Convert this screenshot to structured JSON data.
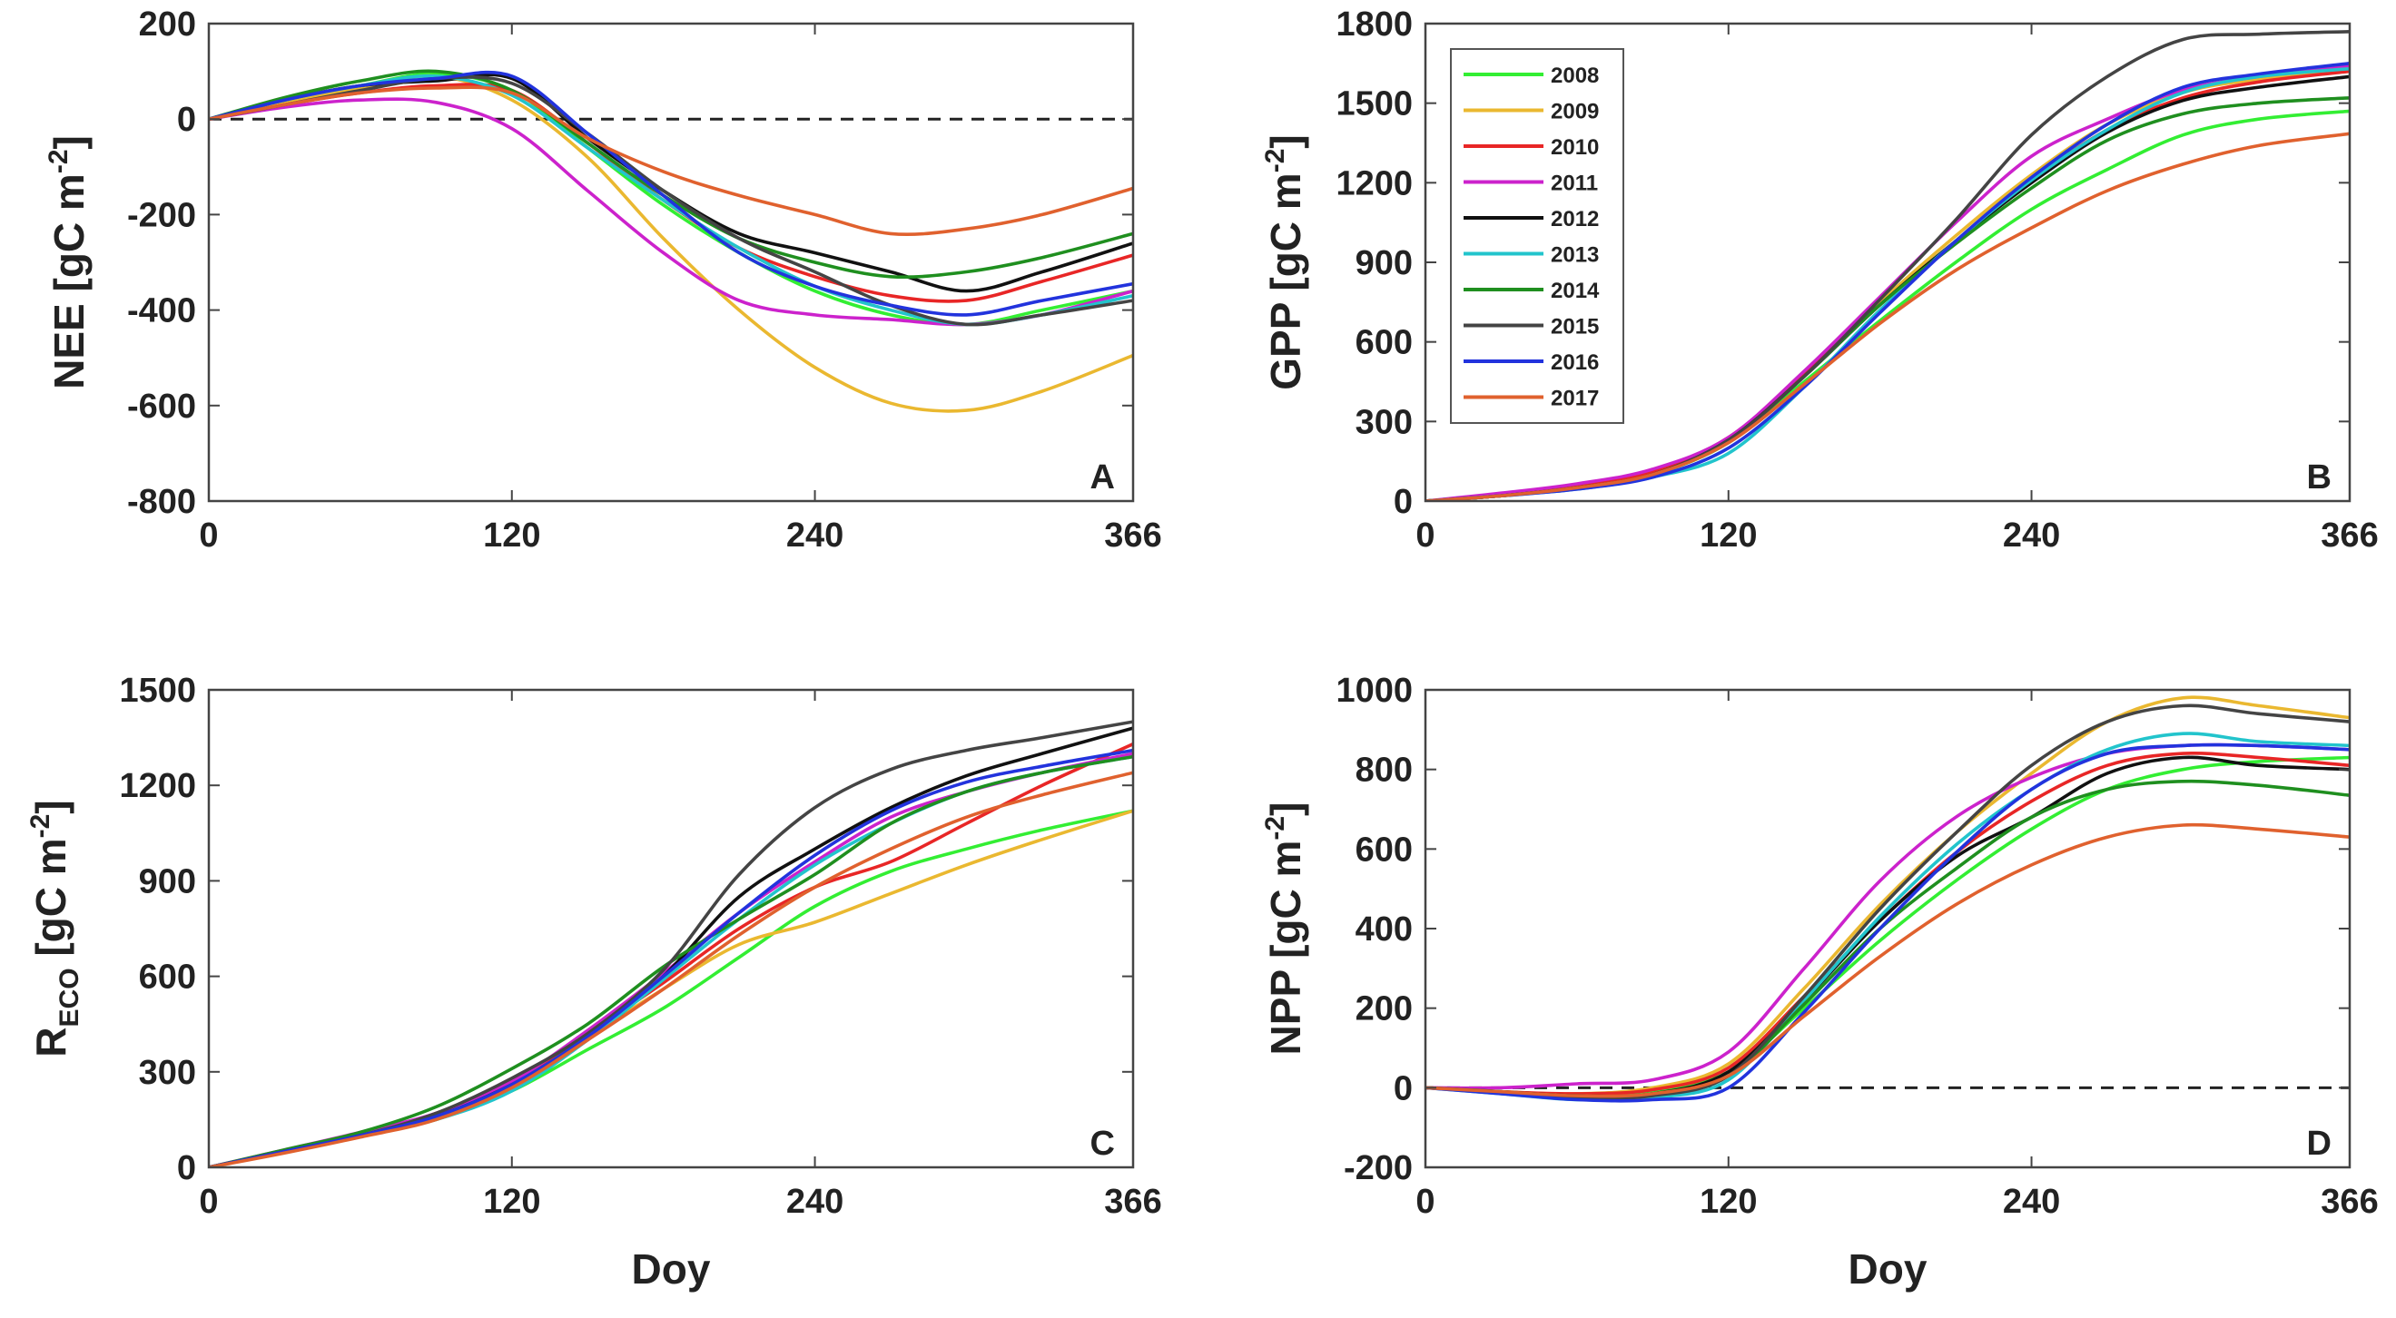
{
  "legend": {
    "entries": [
      {
        "name": "2008",
        "color": "#33ee33"
      },
      {
        "name": "2009",
        "color": "#eab830"
      },
      {
        "name": "2010",
        "color": "#e82626"
      },
      {
        "name": "2011",
        "color": "#cc22cc"
      },
      {
        "name": "2012",
        "color": "#111111"
      },
      {
        "name": "2013",
        "color": "#22c4cc"
      },
      {
        "name": "2014",
        "color": "#1f8f1f"
      },
      {
        "name": "2015",
        "color": "#444444"
      },
      {
        "name": "2016",
        "color": "#2233dd"
      },
      {
        "name": "2017",
        "color": "#e0612e"
      }
    ]
  },
  "chart_data": [
    {
      "panel": "A",
      "type": "line",
      "ylabel": "NEE [gC m",
      "ylabel_sup": "-2",
      "ylabel_end": "]",
      "xlabel": "",
      "xlim": [
        0,
        366
      ],
      "ylim": [
        -800,
        200
      ],
      "xticks": [
        0,
        120,
        240,
        366
      ],
      "yticks": [
        200,
        0,
        -200,
        -400,
        -600,
        -800
      ],
      "zero_line": true,
      "x": [
        0,
        30,
        60,
        90,
        120,
        150,
        180,
        210,
        240,
        270,
        300,
        330,
        366
      ],
      "series": [
        {
          "name": "2008",
          "values": [
            0,
            40,
            70,
            95,
            60,
            -60,
            -180,
            -280,
            -360,
            -410,
            -430,
            -400,
            -360
          ]
        },
        {
          "name": "2009",
          "values": [
            0,
            35,
            65,
            90,
            40,
            -80,
            -250,
            -400,
            -520,
            -595,
            -610,
            -570,
            -495
          ]
        },
        {
          "name": "2010",
          "values": [
            0,
            30,
            55,
            70,
            60,
            -50,
            -170,
            -270,
            -330,
            -370,
            -380,
            -340,
            -285
          ]
        },
        {
          "name": "2011",
          "values": [
            0,
            25,
            40,
            35,
            -20,
            -150,
            -280,
            -380,
            -410,
            -420,
            -430,
            -410,
            -360
          ]
        },
        {
          "name": "2012",
          "values": [
            0,
            40,
            70,
            80,
            85,
            -40,
            -150,
            -240,
            -280,
            -320,
            -360,
            -320,
            -260
          ]
        },
        {
          "name": "2013",
          "values": [
            0,
            40,
            70,
            90,
            50,
            -60,
            -170,
            -270,
            -350,
            -400,
            -430,
            -410,
            -370
          ]
        },
        {
          "name": "2014",
          "values": [
            0,
            45,
            80,
            100,
            60,
            -50,
            -160,
            -250,
            -300,
            -330,
            -320,
            -290,
            -240
          ]
        },
        {
          "name": "2015",
          "values": [
            0,
            30,
            60,
            85,
            75,
            -30,
            -150,
            -250,
            -320,
            -390,
            -430,
            -410,
            -380
          ]
        },
        {
          "name": "2016",
          "values": [
            0,
            40,
            70,
            85,
            90,
            -30,
            -160,
            -280,
            -350,
            -390,
            -410,
            -380,
            -345
          ]
        },
        {
          "name": "2017",
          "values": [
            0,
            30,
            55,
            65,
            55,
            -40,
            -110,
            -160,
            -200,
            -240,
            -230,
            -200,
            -145
          ]
        }
      ],
      "annotation": "A"
    },
    {
      "panel": "B",
      "type": "line",
      "ylabel": "GPP [gC m",
      "ylabel_sup": "-2",
      "ylabel_end": "]",
      "xlabel": "",
      "xlim": [
        0,
        366
      ],
      "ylim": [
        0,
        1800
      ],
      "xticks": [
        0,
        120,
        240,
        366
      ],
      "yticks": [
        1800,
        1500,
        1200,
        900,
        600,
        300,
        0
      ],
      "zero_line": false,
      "x": [
        0,
        30,
        60,
        90,
        120,
        150,
        180,
        210,
        240,
        270,
        300,
        330,
        366
      ],
      "series": [
        {
          "name": "2008",
          "values": [
            0,
            20,
            50,
            100,
            220,
            450,
            680,
            900,
            1100,
            1250,
            1380,
            1440,
            1470
          ]
        },
        {
          "name": "2009",
          "values": [
            0,
            20,
            50,
            100,
            230,
            480,
            750,
            1000,
            1230,
            1420,
            1540,
            1590,
            1620
          ]
        },
        {
          "name": "2010",
          "values": [
            0,
            25,
            55,
            110,
            240,
            480,
            740,
            980,
            1210,
            1400,
            1520,
            1580,
            1620
          ]
        },
        {
          "name": "2011",
          "values": [
            0,
            30,
            65,
            120,
            240,
            490,
            770,
            1050,
            1300,
            1440,
            1550,
            1600,
            1640
          ]
        },
        {
          "name": "2012",
          "values": [
            0,
            20,
            50,
            100,
            230,
            470,
            740,
            980,
            1200,
            1390,
            1510,
            1560,
            1600
          ]
        },
        {
          "name": "2013",
          "values": [
            0,
            20,
            45,
            90,
            180,
            430,
            720,
            980,
            1210,
            1400,
            1540,
            1600,
            1630
          ]
        },
        {
          "name": "2014",
          "values": [
            0,
            20,
            50,
            100,
            225,
            470,
            740,
            970,
            1180,
            1360,
            1460,
            1500,
            1520
          ]
        },
        {
          "name": "2015",
          "values": [
            0,
            20,
            50,
            100,
            230,
            470,
            760,
            1060,
            1380,
            1600,
            1740,
            1760,
            1770
          ]
        },
        {
          "name": "2016",
          "values": [
            0,
            20,
            45,
            90,
            200,
            430,
            710,
            980,
            1220,
            1420,
            1560,
            1610,
            1650
          ]
        },
        {
          "name": "2017",
          "values": [
            0,
            20,
            50,
            100,
            220,
            440,
            670,
            870,
            1030,
            1170,
            1270,
            1340,
            1385
          ]
        }
      ],
      "annotation": "B"
    },
    {
      "panel": "C",
      "type": "line",
      "ylabel": "R",
      "ylabel_sub": "ECO",
      "ylabel_end": " [gC m",
      "ylabel_sup": "-2",
      "ylabel_close": "]",
      "xlabel": "Doy",
      "xlim": [
        0,
        366
      ],
      "ylim": [
        0,
        1500
      ],
      "xticks": [
        0,
        120,
        240,
        366
      ],
      "yticks": [
        1500,
        1200,
        900,
        600,
        300,
        0
      ],
      "zero_line": false,
      "x": [
        0,
        30,
        60,
        90,
        120,
        150,
        180,
        210,
        240,
        270,
        300,
        330,
        366
      ],
      "series": [
        {
          "name": "2008",
          "values": [
            0,
            50,
            100,
            150,
            240,
            370,
            500,
            660,
            820,
            930,
            1000,
            1060,
            1120
          ]
        },
        {
          "name": "2009",
          "values": [
            0,
            50,
            100,
            160,
            270,
            410,
            560,
            700,
            770,
            860,
            950,
            1030,
            1120
          ]
        },
        {
          "name": "2010",
          "values": [
            0,
            50,
            100,
            170,
            270,
            420,
            580,
            750,
            880,
            960,
            1080,
            1200,
            1330
          ]
        },
        {
          "name": "2011",
          "values": [
            0,
            55,
            110,
            170,
            270,
            430,
            610,
            800,
            960,
            1100,
            1180,
            1240,
            1300
          ]
        },
        {
          "name": "2012",
          "values": [
            0,
            50,
            100,
            160,
            260,
            400,
            600,
            850,
            1000,
            1130,
            1230,
            1300,
            1380
          ]
        },
        {
          "name": "2013",
          "values": [
            0,
            50,
            100,
            150,
            240,
            400,
            590,
            780,
            950,
            1080,
            1180,
            1240,
            1290
          ]
        },
        {
          "name": "2014",
          "values": [
            0,
            55,
            110,
            190,
            310,
            450,
            630,
            780,
            920,
            1080,
            1180,
            1240,
            1290
          ]
        },
        {
          "name": "2015",
          "values": [
            0,
            50,
            100,
            170,
            280,
            420,
            620,
            920,
            1130,
            1250,
            1310,
            1350,
            1400
          ]
        },
        {
          "name": "2016",
          "values": [
            0,
            50,
            100,
            160,
            260,
            410,
            600,
            800,
            980,
            1120,
            1210,
            1260,
            1310
          ]
        },
        {
          "name": "2017",
          "values": [
            0,
            45,
            95,
            150,
            250,
            400,
            560,
            730,
            880,
            1000,
            1100,
            1170,
            1240
          ]
        }
      ],
      "annotation": "C"
    },
    {
      "panel": "D",
      "type": "line",
      "ylabel": "NPP [gC m",
      "ylabel_sup": "-2",
      "ylabel_end": "]",
      "xlabel": "Doy",
      "xlim": [
        0,
        366
      ],
      "ylim": [
        -200,
        1000
      ],
      "xticks": [
        0,
        120,
        240,
        366
      ],
      "yticks": [
        1000,
        800,
        600,
        400,
        200,
        0,
        -200
      ],
      "zero_line": true,
      "x": [
        0,
        30,
        60,
        90,
        120,
        150,
        180,
        210,
        240,
        270,
        300,
        330,
        366
      ],
      "series": [
        {
          "name": "2008",
          "values": [
            0,
            -10,
            -20,
            -10,
            40,
            200,
            370,
            520,
            650,
            750,
            800,
            820,
            830
          ]
        },
        {
          "name": "2009",
          "values": [
            0,
            -10,
            -15,
            0,
            60,
            250,
            460,
            640,
            790,
            920,
            980,
            960,
            930
          ]
        },
        {
          "name": "2010",
          "values": [
            0,
            -10,
            -15,
            -5,
            50,
            230,
            420,
            590,
            720,
            810,
            840,
            830,
            810
          ]
        },
        {
          "name": "2011",
          "values": [
            0,
            0,
            10,
            20,
            90,
            300,
            520,
            680,
            780,
            840,
            860,
            860,
            850
          ]
        },
        {
          "name": "2012",
          "values": [
            0,
            -10,
            -20,
            -15,
            40,
            220,
            420,
            580,
            680,
            790,
            830,
            810,
            800
          ]
        },
        {
          "name": "2013",
          "values": [
            0,
            -15,
            -30,
            -25,
            20,
            220,
            430,
            610,
            750,
            850,
            890,
            870,
            860
          ]
        },
        {
          "name": "2014",
          "values": [
            0,
            -10,
            -25,
            -15,
            30,
            210,
            400,
            550,
            680,
            750,
            770,
            760,
            735
          ]
        },
        {
          "name": "2015",
          "values": [
            0,
            -10,
            -25,
            -20,
            30,
            230,
            450,
            640,
            810,
            920,
            960,
            940,
            920
          ]
        },
        {
          "name": "2016",
          "values": [
            0,
            -15,
            -30,
            -30,
            0,
            190,
            400,
            590,
            750,
            840,
            860,
            860,
            850
          ]
        },
        {
          "name": "2017",
          "values": [
            0,
            -10,
            -20,
            -15,
            30,
            180,
            330,
            460,
            560,
            630,
            660,
            650,
            630
          ]
        }
      ],
      "annotation": "D"
    }
  ]
}
